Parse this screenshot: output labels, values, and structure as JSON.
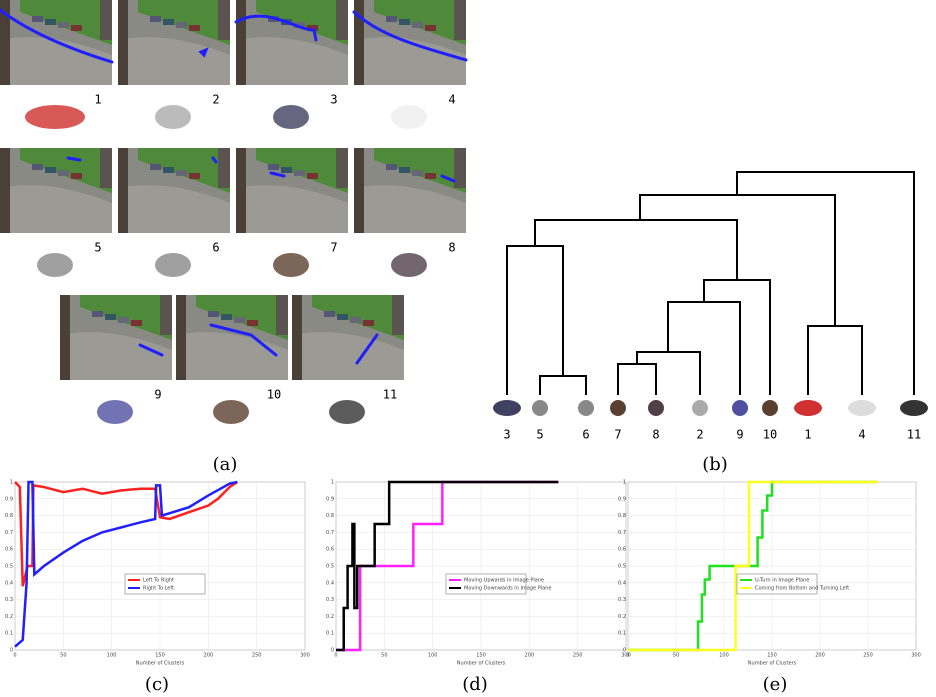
{
  "panel_a": {
    "labels": [
      "1",
      "2",
      "3",
      "4",
      "5",
      "6",
      "7",
      "8",
      "9",
      "10",
      "11"
    ]
  },
  "panel_b": {
    "leaf_labels": [
      "3",
      "5",
      "6",
      "7",
      "8",
      "2",
      "9",
      "10",
      "1",
      "4",
      "11"
    ]
  },
  "captions": [
    "(a)",
    "(b)",
    "(c)",
    "(d)",
    "(e)"
  ],
  "chart_data": [
    {
      "type": "line",
      "x_label": "Number of Clusters",
      "xlim": [
        0,
        300
      ],
      "ylim": [
        0,
        1
      ],
      "xticks": [
        0,
        50,
        100,
        150,
        200,
        250,
        300
      ],
      "yticks": [
        0,
        0.1,
        0.2,
        0.3,
        0.4,
        0.5,
        0.6,
        0.7,
        0.8,
        0.9,
        1
      ],
      "grid": true,
      "legend": "center",
      "series": [
        {
          "name": "Left To Right",
          "color": "#ff2020",
          "x": [
            0,
            5,
            8,
            13,
            18,
            19,
            30,
            50,
            70,
            90,
            110,
            130,
            145,
            150,
            160,
            180,
            200,
            210,
            222,
            230
          ],
          "values": [
            1,
            0.97,
            0.38,
            0.5,
            0.5,
            0.98,
            0.97,
            0.94,
            0.96,
            0.93,
            0.95,
            0.96,
            0.96,
            0.79,
            0.78,
            0.82,
            0.86,
            0.9,
            0.97,
            1
          ]
        },
        {
          "name": "Right To Left",
          "color": "#2020ff",
          "x": [
            0,
            8,
            12,
            14,
            18,
            20,
            30,
            50,
            70,
            90,
            110,
            130,
            145,
            146,
            150,
            152,
            180,
            200,
            222,
            230
          ],
          "values": [
            0.02,
            0.06,
            0.4,
            1,
            1,
            0.45,
            0.5,
            0.58,
            0.65,
            0.7,
            0.73,
            0.76,
            0.78,
            0.98,
            0.98,
            0.8,
            0.85,
            0.92,
            0.99,
            1
          ]
        }
      ]
    },
    {
      "type": "line",
      "x_label": "Number of Clusters",
      "xlim": [
        0,
        300
      ],
      "ylim": [
        0,
        1
      ],
      "xticks": [
        0,
        50,
        100,
        150,
        200,
        250,
        300
      ],
      "yticks": [
        0,
        0.1,
        0.2,
        0.3,
        0.4,
        0.5,
        0.6,
        0.7,
        0.8,
        0.9,
        1
      ],
      "grid": true,
      "legend": "center",
      "series": [
        {
          "name": "Moving Upwards in Image Plane",
          "color": "#ff20ff",
          "x": [
            0,
            25,
            25,
            80,
            80,
            110,
            110,
            230
          ],
          "values": [
            0,
            0,
            0.5,
            0.5,
            0.75,
            0.75,
            1,
            1
          ]
        },
        {
          "name": "Moving Downwards in Image Plane",
          "color": "#000000",
          "x": [
            0,
            8,
            8,
            12,
            12,
            17,
            17,
            19,
            19,
            22,
            22,
            40,
            40,
            55,
            55,
            230
          ],
          "values": [
            0,
            0,
            0.25,
            0.25,
            0.5,
            0.5,
            0.75,
            0.75,
            0.25,
            0.25,
            0.5,
            0.5,
            0.75,
            0.75,
            1,
            1
          ]
        }
      ]
    },
    {
      "type": "line",
      "x_label": "Number of Clusters",
      "xlim": [
        0,
        300
      ],
      "ylim": [
        0,
        1
      ],
      "xticks": [
        0,
        50,
        100,
        150,
        200,
        250,
        300
      ],
      "yticks": [
        0,
        0.1,
        0.2,
        0.3,
        0.4,
        0.5,
        0.6,
        0.7,
        0.8,
        0.9,
        1
      ],
      "grid": true,
      "legend": "center",
      "series": [
        {
          "name": "U-Turn in Image Plane",
          "color": "#20e020",
          "x": [
            0,
            73,
            73,
            77,
            77,
            80,
            80,
            85,
            85,
            135,
            135,
            140,
            140,
            145,
            145,
            150,
            150,
            260
          ],
          "values": [
            0,
            0,
            0.17,
            0.17,
            0.33,
            0.33,
            0.42,
            0.42,
            0.5,
            0.5,
            0.67,
            0.67,
            0.83,
            0.83,
            0.92,
            0.92,
            1,
            1
          ]
        },
        {
          "name": "Coming from Bottom and Turning Left",
          "color": "#ffff20",
          "x": [
            0,
            112,
            112,
            126,
            126,
            260
          ],
          "values": [
            0,
            0,
            0.5,
            0.5,
            1,
            1
          ]
        }
      ]
    }
  ]
}
